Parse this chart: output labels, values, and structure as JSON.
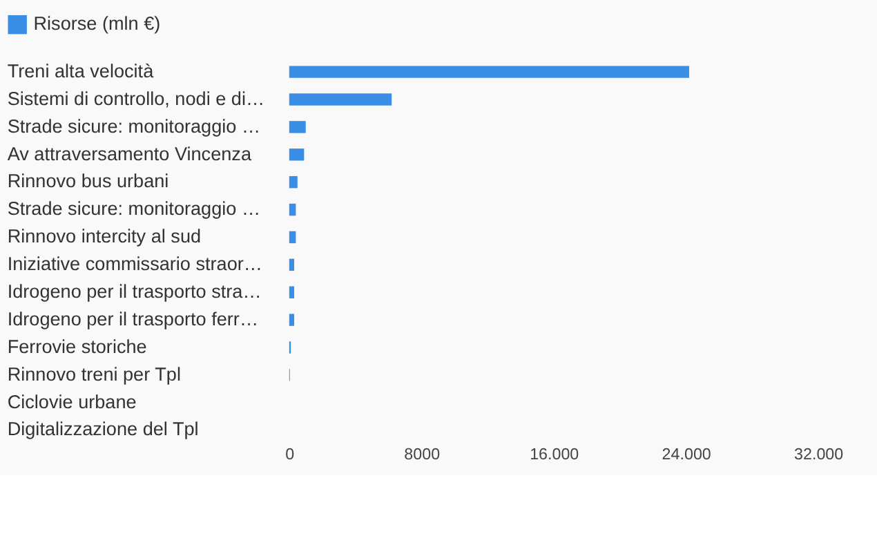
{
  "chart_data": {
    "type": "bar",
    "orientation": "horizontal",
    "categories": [
      "Treni alta velocità",
      "Sistemi di controllo, nodi e di…",
      "Strade sicure: monitoraggio …",
      "Av attraversamento Vincenza",
      "Rinnovo bus urbani",
      "Strade sicure: monitoraggio …",
      "Rinnovo intercity al sud",
      "Iniziative commissario straor…",
      "Idrogeno per il trasporto stra…",
      "Idrogeno per il trasporto ferr…",
      "Ferrovie storiche",
      "Rinnovo treni per Tpl",
      "Ciclovie urbane",
      "Digitalizzazione del Tpl"
    ],
    "series": [
      {
        "name": "Risorse (mln €)",
        "color": "#3a8ee6",
        "values": [
          24200,
          6200,
          1000,
          900,
          500,
          400,
          400,
          300,
          300,
          300,
          100,
          40,
          null,
          null
        ]
      }
    ],
    "xlim": [
      0,
      32000
    ],
    "xticks": [
      0,
      8000,
      {
        "value": 16000,
        "label": "16.000"
      },
      {
        "value": 24000,
        "label": "24.000"
      },
      {
        "value": 32000,
        "label": "32.000"
      }
    ],
    "grid": false,
    "legend": "top left"
  }
}
